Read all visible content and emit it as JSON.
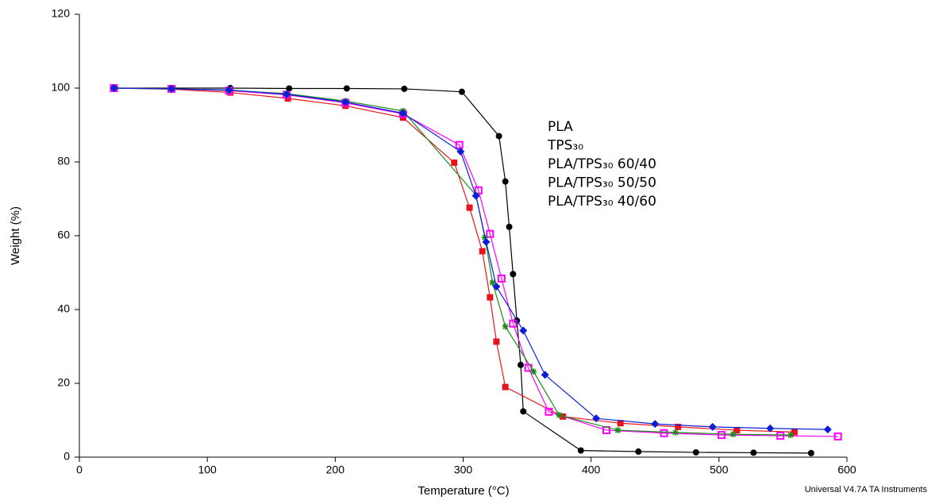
{
  "chart_data": {
    "type": "line",
    "xlabel": "Temperature (°C)",
    "ylabel": "Weight (%)",
    "footer": "Universal V4.7A TA Instruments",
    "xlim": [
      0,
      600
    ],
    "xticks": [
      0,
      100,
      200,
      300,
      400,
      500,
      600
    ],
    "ylim": [
      0,
      120
    ],
    "yticks": [
      0,
      20,
      40,
      60,
      80,
      100,
      120
    ],
    "legend": "upper-right",
    "series": [
      {
        "name": "PLA",
        "color": "#000000",
        "marker": "circle",
        "x": [
          28,
          73,
          118,
          164,
          209,
          254,
          299,
          328,
          333,
          336,
          339,
          342,
          345,
          347,
          392,
          437,
          482,
          527,
          572
        ],
        "values": [
          100,
          100,
          100,
          99.9,
          99.9,
          99.8,
          99,
          87,
          74.7,
          62.4,
          49.6,
          37,
          25,
          12.4,
          1.8,
          1.5,
          1.3,
          1.2,
          1.1
        ]
      },
      {
        "name": "TPS₃₀",
        "color": "#e8141c",
        "marker": "square",
        "x": [
          27,
          72,
          118,
          163,
          208,
          253,
          293,
          305,
          315,
          321,
          326,
          333,
          378,
          423,
          468,
          514,
          559
        ],
        "values": [
          100,
          99.7,
          98.8,
          97.2,
          95.2,
          92,
          79.8,
          67.6,
          55.8,
          43.3,
          31.3,
          19,
          11,
          9.2,
          8.2,
          7.3,
          6.8
        ]
      },
      {
        "name": "PLA/TPS₃₀ 60/40",
        "color": "#ff00ff",
        "marker": "open-square",
        "x": [
          27,
          72,
          117,
          162,
          208,
          253,
          297,
          312,
          321,
          330,
          339,
          351,
          367,
          412,
          457,
          502,
          548,
          593
        ],
        "values": [
          100,
          99.8,
          99.3,
          98.2,
          96,
          93,
          84.6,
          72.3,
          60.5,
          48.4,
          36.2,
          24.2,
          12.3,
          7.3,
          6.5,
          6,
          5.8,
          5.6
        ]
      },
      {
        "name": "PLA/TPS₃₀ 50/50",
        "color": "#1a8a1a",
        "marker": "star",
        "x": [
          27,
          72,
          117,
          162,
          208,
          253,
          310,
          317,
          323,
          333,
          355,
          375,
          421,
          466,
          511,
          556
        ],
        "values": [
          100,
          99.8,
          99.4,
          98.5,
          96.5,
          93.8,
          71,
          59.5,
          47.3,
          35.4,
          23.2,
          11.4,
          7.3,
          6.7,
          6.2,
          6
        ]
      },
      {
        "name": "PLA/TPS₃₀ 40/60",
        "color": "#0a1fd6",
        "marker": "diamond",
        "x": [
          27,
          72,
          117,
          162,
          208,
          253,
          298,
          310,
          318,
          326,
          347,
          364,
          404,
          450,
          495,
          540,
          585
        ],
        "values": [
          100,
          99.8,
          99.5,
          98.3,
          96.2,
          93.2,
          82.8,
          70.8,
          58.3,
          46.2,
          34.3,
          22.3,
          10.5,
          9,
          8.2,
          7.8,
          7.5
        ]
      }
    ]
  }
}
